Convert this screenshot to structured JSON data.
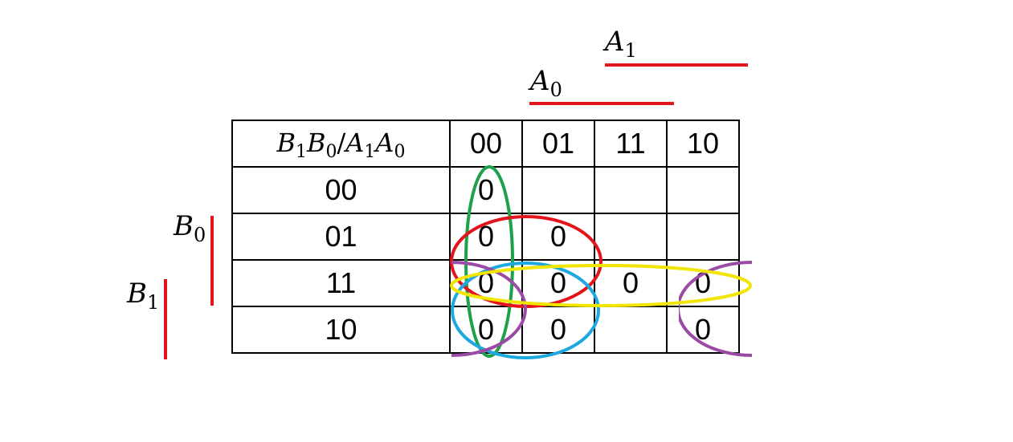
{
  "labels": {
    "A1": {
      "var": "A",
      "sub": "1"
    },
    "A0": {
      "var": "A",
      "sub": "0"
    },
    "B0": {
      "var": "B",
      "sub": "0"
    },
    "B1": {
      "var": "B",
      "sub": "1"
    }
  },
  "kmap": {
    "corner": {
      "B1": "B",
      "B1s": "1",
      "B0": "B",
      "B0s": "0",
      "slash": "/",
      "A1": "A",
      "A1s": "1",
      "A0": "A",
      "A0s": "0"
    },
    "col_headers": [
      "00",
      "01",
      "11",
      "10"
    ],
    "rows": [
      {
        "label": "00",
        "cells": [
          "0",
          "",
          "",
          ""
        ]
      },
      {
        "label": "01",
        "cells": [
          "0",
          "0",
          "",
          ""
        ]
      },
      {
        "label": "11",
        "cells": [
          "0",
          "0",
          "0",
          "0"
        ]
      },
      {
        "label": "10",
        "cells": [
          "0",
          "0",
          "",
          "0"
        ]
      }
    ]
  },
  "colors": {
    "variable_bar": "#e3141b",
    "green_loop": "#1fa14a",
    "red_loop": "#e3141b",
    "yellow_loop": "#f2e600",
    "blue_loop": "#1ea8e0",
    "purple_loop": "#9b4aa5"
  }
}
